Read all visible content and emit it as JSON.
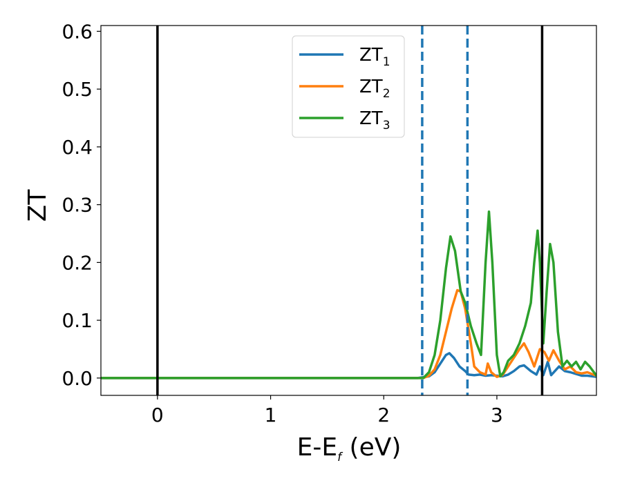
{
  "chart_data": {
    "type": "line",
    "title": "",
    "xlabel": "E-E",
    "xlabel_sub": "f",
    "xlabel_unit": " (eV)",
    "ylabel": "ZT",
    "xlim": [
      -0.5,
      3.88
    ],
    "ylim": [
      -0.03,
      0.61
    ],
    "xticks": [
      0,
      1,
      2,
      3
    ],
    "xtick_labels": [
      "0",
      "1",
      "2",
      "3"
    ],
    "yticks": [
      0.0,
      0.1,
      0.2,
      0.3,
      0.4,
      0.5,
      0.6
    ],
    "ytick_labels": [
      "0.0",
      "0.1",
      "0.2",
      "0.3",
      "0.4",
      "0.5",
      "0.6"
    ],
    "grid": false,
    "legend_position": "top-center",
    "vlines": [
      {
        "x": 0.0,
        "color": "#000000",
        "style": "solid"
      },
      {
        "x": 3.4,
        "color": "#000000",
        "style": "solid"
      },
      {
        "x": 2.34,
        "color": "#1f77b4",
        "style": "dashed"
      },
      {
        "x": 2.74,
        "color": "#1f77b4",
        "style": "dashed"
      }
    ],
    "series": [
      {
        "name": "ZT",
        "name_sub": "1",
        "color": "#1f77b4",
        "points": [
          [
            -0.5,
            0
          ],
          [
            2.3,
            0
          ],
          [
            2.4,
            0.003
          ],
          [
            2.45,
            0.01
          ],
          [
            2.5,
            0.025
          ],
          [
            2.55,
            0.04
          ],
          [
            2.58,
            0.043
          ],
          [
            2.62,
            0.035
          ],
          [
            2.67,
            0.02
          ],
          [
            2.72,
            0.012
          ],
          [
            2.75,
            0.006
          ],
          [
            2.8,
            0.005
          ],
          [
            2.85,
            0.006
          ],
          [
            2.9,
            0.004
          ],
          [
            2.95,
            0.005
          ],
          [
            3.0,
            0.004
          ],
          [
            3.05,
            0.003
          ],
          [
            3.1,
            0.006
          ],
          [
            3.15,
            0.012
          ],
          [
            3.2,
            0.02
          ],
          [
            3.24,
            0.022
          ],
          [
            3.3,
            0.012
          ],
          [
            3.35,
            0.006
          ],
          [
            3.38,
            0.02
          ],
          [
            3.41,
            0.005
          ],
          [
            3.45,
            0.028
          ],
          [
            3.48,
            0.005
          ],
          [
            3.55,
            0.02
          ],
          [
            3.6,
            0.012
          ],
          [
            3.65,
            0.01
          ],
          [
            3.7,
            0.007
          ],
          [
            3.75,
            0.004
          ],
          [
            3.8,
            0.004
          ],
          [
            3.88,
            0.002
          ]
        ]
      },
      {
        "name": "ZT",
        "name_sub": "2",
        "color": "#ff7f0e",
        "points": [
          [
            -0.5,
            0
          ],
          [
            2.35,
            0
          ],
          [
            2.4,
            0.004
          ],
          [
            2.45,
            0.015
          ],
          [
            2.5,
            0.04
          ],
          [
            2.55,
            0.08
          ],
          [
            2.6,
            0.12
          ],
          [
            2.65,
            0.152
          ],
          [
            2.68,
            0.15
          ],
          [
            2.72,
            0.12
          ],
          [
            2.77,
            0.06
          ],
          [
            2.8,
            0.02
          ],
          [
            2.85,
            0.01
          ],
          [
            2.9,
            0.006
          ],
          [
            2.92,
            0.025
          ],
          [
            2.95,
            0.01
          ],
          [
            3.0,
            0.002
          ],
          [
            3.05,
            0.005
          ],
          [
            3.1,
            0.02
          ],
          [
            3.15,
            0.035
          ],
          [
            3.2,
            0.05
          ],
          [
            3.24,
            0.06
          ],
          [
            3.28,
            0.045
          ],
          [
            3.33,
            0.02
          ],
          [
            3.38,
            0.05
          ],
          [
            3.42,
            0.045
          ],
          [
            3.46,
            0.03
          ],
          [
            3.5,
            0.048
          ],
          [
            3.55,
            0.03
          ],
          [
            3.6,
            0.015
          ],
          [
            3.65,
            0.02
          ],
          [
            3.7,
            0.01
          ],
          [
            3.75,
            0.008
          ],
          [
            3.8,
            0.01
          ],
          [
            3.88,
            0.004
          ]
        ]
      },
      {
        "name": "ZT",
        "name_sub": "3",
        "color": "#2ca02c",
        "points": [
          [
            -0.5,
            0
          ],
          [
            2.35,
            0
          ],
          [
            2.4,
            0.01
          ],
          [
            2.45,
            0.04
          ],
          [
            2.5,
            0.1
          ],
          [
            2.55,
            0.19
          ],
          [
            2.59,
            0.245
          ],
          [
            2.63,
            0.22
          ],
          [
            2.68,
            0.15
          ],
          [
            2.72,
            0.13
          ],
          [
            2.77,
            0.09
          ],
          [
            2.82,
            0.06
          ],
          [
            2.86,
            0.04
          ],
          [
            2.9,
            0.2
          ],
          [
            2.93,
            0.288
          ],
          [
            2.96,
            0.2
          ],
          [
            3.0,
            0.04
          ],
          [
            3.03,
            0.003
          ],
          [
            3.06,
            0.01
          ],
          [
            3.1,
            0.03
          ],
          [
            3.15,
            0.04
          ],
          [
            3.2,
            0.06
          ],
          [
            3.25,
            0.09
          ],
          [
            3.3,
            0.13
          ],
          [
            3.33,
            0.2
          ],
          [
            3.36,
            0.255
          ],
          [
            3.38,
            0.2
          ],
          [
            3.41,
            0.06
          ],
          [
            3.44,
            0.15
          ],
          [
            3.47,
            0.232
          ],
          [
            3.5,
            0.2
          ],
          [
            3.54,
            0.08
          ],
          [
            3.58,
            0.02
          ],
          [
            3.62,
            0.03
          ],
          [
            3.66,
            0.02
          ],
          [
            3.7,
            0.028
          ],
          [
            3.74,
            0.015
          ],
          [
            3.78,
            0.028
          ],
          [
            3.82,
            0.02
          ],
          [
            3.88,
            0.004
          ]
        ]
      }
    ]
  }
}
